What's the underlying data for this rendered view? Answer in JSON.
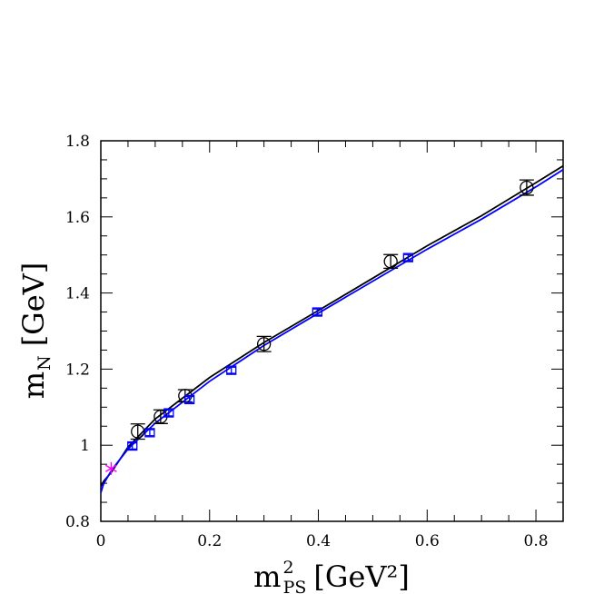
{
  "chart_data": {
    "type": "scatter",
    "xlabel": {
      "main": "m",
      "sup": "2",
      "sub": "PS",
      "unit": "[GeV²]"
    },
    "ylabel": {
      "main": "m",
      "sub": "N",
      "unit": "[GeV]"
    },
    "xlim": [
      0,
      0.85
    ],
    "ylim": [
      0.8,
      1.8
    ],
    "x_ticks": [
      {
        "value": 0,
        "label": "0"
      },
      {
        "value": 0.2,
        "label": "0.2"
      },
      {
        "value": 0.4,
        "label": "0.4"
      },
      {
        "value": 0.6,
        "label": "0.6"
      },
      {
        "value": 0.8,
        "label": "0.8"
      }
    ],
    "y_ticks": [
      {
        "value": 0.8,
        "label": "0.8"
      },
      {
        "value": 1.0,
        "label": "1"
      },
      {
        "value": 1.2,
        "label": "1.2"
      },
      {
        "value": 1.4,
        "label": "1.4"
      },
      {
        "value": 1.6,
        "label": "1.6"
      },
      {
        "value": 1.8,
        "label": "1.8"
      }
    ],
    "series": [
      {
        "marker": "circle",
        "color": "#000000",
        "points": [
          {
            "x": 0.068,
            "y": 1.036,
            "err": 0.02
          },
          {
            "x": 0.11,
            "y": 1.075,
            "err": 0.018
          },
          {
            "x": 0.155,
            "y": 1.13,
            "err": 0.016
          },
          {
            "x": 0.3,
            "y": 1.266,
            "err": 0.02
          },
          {
            "x": 0.533,
            "y": 1.483,
            "err": 0.018
          },
          {
            "x": 0.783,
            "y": 1.677,
            "err": 0.02
          }
        ]
      },
      {
        "marker": "square",
        "color": "#0000ff",
        "points": [
          {
            "x": 0.058,
            "y": 0.998,
            "err": 0.008
          },
          {
            "x": 0.09,
            "y": 1.033,
            "err": 0.008
          },
          {
            "x": 0.125,
            "y": 1.085,
            "err": 0.008
          },
          {
            "x": 0.163,
            "y": 1.12,
            "err": 0.008
          },
          {
            "x": 0.24,
            "y": 1.197,
            "err": 0.008
          },
          {
            "x": 0.398,
            "y": 1.35,
            "err": 0.008
          },
          {
            "x": 0.565,
            "y": 1.493,
            "err": 0.008
          }
        ]
      }
    ],
    "fits": [
      {
        "color": "#000000",
        "x": [
          0.0,
          0.005,
          0.02,
          0.05,
          0.1,
          0.2,
          0.3,
          0.4,
          0.5,
          0.6,
          0.7,
          0.8,
          0.85
        ],
        "y": [
          0.892,
          0.905,
          0.93,
          0.995,
          1.069,
          1.178,
          1.27,
          1.354,
          1.439,
          1.524,
          1.603,
          1.69,
          1.734
        ]
      },
      {
        "color": "#0000ff",
        "x": [
          0.0,
          0.005,
          0.02,
          0.05,
          0.1,
          0.2,
          0.3,
          0.4,
          0.5,
          0.6,
          0.7,
          0.8,
          0.85
        ],
        "y": [
          0.875,
          0.898,
          0.935,
          0.99,
          1.058,
          1.168,
          1.262,
          1.347,
          1.431,
          1.515,
          1.594,
          1.679,
          1.724
        ]
      }
    ],
    "physical_point": {
      "x": 0.019,
      "y": 0.939,
      "marker": "asterisk",
      "color": "#ff00ff"
    },
    "grid": false,
    "legend": "none"
  }
}
